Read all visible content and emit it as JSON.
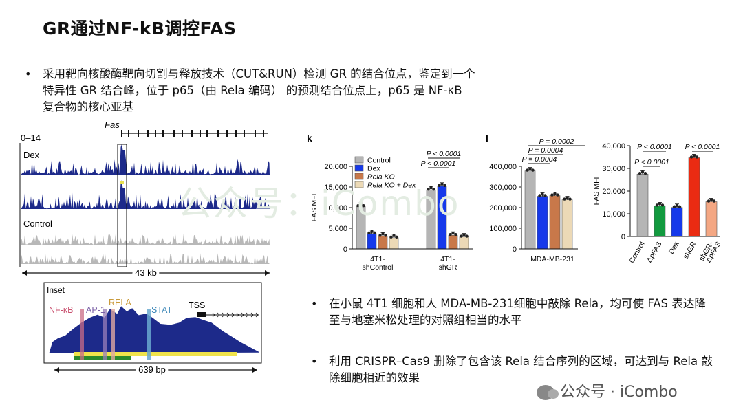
{
  "title": "GR通过NF-kB调控FAS",
  "bullets": [
    "采用靶向核酸酶靶向切割与释放技术（CUT&RUN）检测 GR 的结合位点，鉴定到一个特异性 GR 结合峰，位于 p65（由 Rela 编码） 的预测结合位点上，p65 是 NF-κB 复合物的核心亚基",
    "在小鼠 4T1 细胞和人 MDA-MB-231细胞中敲除 Rela，均可使 FAS 表达降至与地塞米松处理的对照组相当的水平",
    "利用 CRISPR–Cas9 删除了包含该 Rela 结合序列的区域，可达到与 Rela 敲除细胞相近的效果"
  ],
  "bullet_symbol": "•",
  "watermark": {
    "background": "公众号：iCombo",
    "brand": "公众号 · iCombo"
  },
  "colors": {
    "dex_track": "#1d2a8a",
    "control_track": "#b8b8b8",
    "grey_bar": "#b5b5b5",
    "blue_bar": "#1639ea",
    "orange_bar": "#c8784a",
    "beige_bar": "#ecd9b6",
    "green_bar": "#129a3f",
    "red_bar": "#ea2b12",
    "salmon_bar": "#f4a783"
  },
  "genome": {
    "gene_label": "Fas",
    "scale_label": "0–14",
    "track1_label": "Dex",
    "track2_label": "Control",
    "span_label": "43 kb",
    "inset": {
      "title": "Inset",
      "sites": [
        "NF-κB",
        "AP-1",
        "RELA",
        "STAT"
      ],
      "tss_label": "TSS",
      "span_label": "639 bp"
    }
  },
  "chart_data": [
    {
      "type": "bar",
      "panel_label": "k",
      "ylabel": "FAS MFI",
      "ylim": [
        0,
        20000
      ],
      "yticks": [
        "0",
        "5,000",
        "10,000",
        "15,000",
        "20,000"
      ],
      "groups": [
        "4T1-shControl",
        "4T1-shGR"
      ],
      "group_tick_labels": [
        [
          "4T1-",
          "shControl"
        ],
        [
          "4T1-",
          "shGR"
        ]
      ],
      "series": [
        {
          "name": "Control",
          "values": [
            10300,
            14300
          ]
        },
        {
          "name": "Dex",
          "values": [
            3700,
            15200
          ]
        },
        {
          "name": "Rela KO",
          "values": [
            3100,
            3300
          ]
        },
        {
          "name": "Rela KO + Dex",
          "values": [
            2700,
            2900
          ]
        }
      ],
      "significance": [
        "P < 0.0001",
        "P < 0.0001"
      ]
    },
    {
      "type": "bar",
      "panel_label": "l",
      "ylim": [
        0,
        400000
      ],
      "yticks": [
        "0",
        "100,000",
        "200,000",
        "300,000",
        "400,000"
      ],
      "xlabel": "MDA-MB-231",
      "series": [
        {
          "name": "Control",
          "values": [
            378000
          ]
        },
        {
          "name": "Dex",
          "values": [
            255000
          ]
        },
        {
          "name": "Rela KO",
          "values": [
            258000
          ]
        },
        {
          "name": "Rela KO + Dex",
          "values": [
            238000
          ]
        }
      ],
      "significance": [
        "P = 0.0002",
        "P = 0.0004",
        "P = 0.0004"
      ]
    },
    {
      "type": "bar",
      "ylabel": "FAS MFI",
      "ylim": [
        0,
        40000
      ],
      "yticks": [
        "0",
        "10,000",
        "20,000",
        "30,000",
        "40,000"
      ],
      "categories": [
        "Control",
        "ΔpFAS",
        "Dex",
        "shGR",
        "shGR-ΔpFAS"
      ],
      "category_tick_labels": [
        [
          "Control"
        ],
        [
          "ΔpFAS"
        ],
        [
          "Dex"
        ],
        [
          "shGR"
        ],
        [
          "shGR-",
          "ΔpFAS"
        ]
      ],
      "values": [
        27500,
        13500,
        12800,
        34700,
        15300
      ],
      "significance": [
        "P < 0.0001",
        "P < 0.0001",
        "P < 0.0001"
      ]
    }
  ]
}
